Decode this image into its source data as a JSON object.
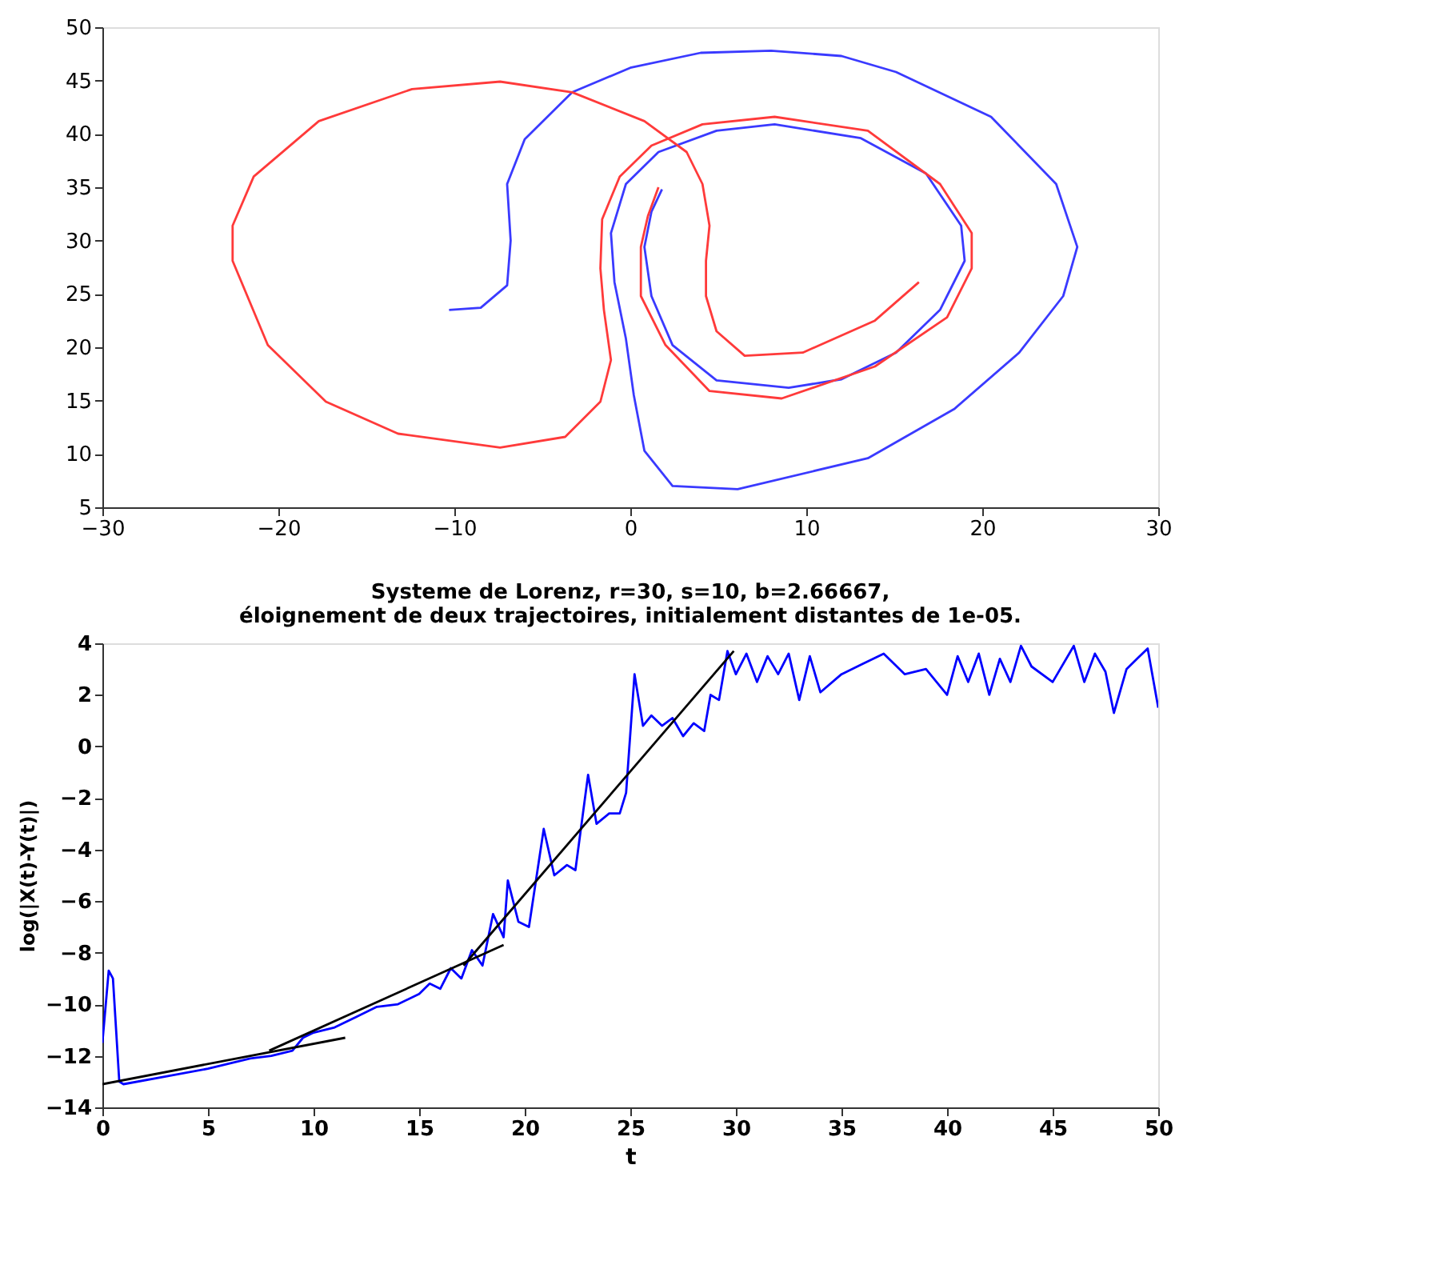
{
  "chart_data": [
    {
      "type": "line",
      "xlim": [
        -30,
        30
      ],
      "ylim": [
        5,
        50
      ],
      "xticks": [
        -30,
        -20,
        -10,
        0,
        10,
        20,
        30
      ],
      "yticks": [
        5,
        10,
        15,
        20,
        25,
        30,
        35,
        40,
        45,
        50
      ],
      "grid": false,
      "marker": "none",
      "line_style": "solid",
      "series": [
        {
          "color": "#3a3aff",
          "x": [
            -10.3,
            -8.5,
            -7.0,
            -6.8,
            -7.0,
            -6.0,
            -3.3,
            0.0,
            4.0,
            8.0,
            12.0,
            15.1,
            20.5,
            24.2,
            25.4,
            24.6,
            22.1,
            18.4,
            13.5,
            6.1,
            2.4,
            0.8,
            0.2,
            -0.25,
            -0.9,
            -1.1,
            -0.25,
            1.6,
            4.9,
            8.2,
            13.1,
            16.8,
            18.8,
            19.0,
            17.6,
            15.1,
            12.0,
            9.0,
            4.9,
            2.4,
            1.2,
            0.8,
            1.2,
            1.8
          ],
          "values": [
            23.5,
            23.7,
            25.8,
            30.0,
            35.3,
            39.5,
            43.9,
            46.2,
            47.6,
            47.8,
            47.3,
            45.8,
            41.6,
            35.3,
            29.4,
            24.8,
            19.5,
            14.2,
            9.6,
            6.7,
            7.0,
            10.3,
            15.5,
            20.8,
            26.1,
            30.7,
            35.3,
            38.3,
            40.3,
            40.9,
            39.6,
            36.3,
            31.4,
            28.1,
            23.5,
            19.5,
            17.0,
            16.2,
            16.9,
            20.2,
            24.8,
            29.4,
            32.7,
            34.8
          ]
        },
        {
          "color": "#ff3a3a",
          "x": [
            16.4,
            13.9,
            9.8,
            6.5,
            4.9,
            4.3,
            4.3,
            4.5,
            4.1,
            3.2,
            0.8,
            -3.3,
            -7.4,
            -12.4,
            -17.7,
            -21.4,
            -22.6,
            -22.6,
            -20.6,
            -17.3,
            -13.2,
            -7.4,
            -3.7,
            -1.7,
            -1.1,
            -1.5,
            -1.7,
            -1.6,
            -0.6,
            1.2,
            4.1,
            8.2,
            13.5,
            17.6,
            19.4,
            19.4,
            18.0,
            13.9,
            8.6,
            4.5,
            2.0,
            0.6,
            0.6,
            1.0,
            1.6
          ],
          "values": [
            26.1,
            22.5,
            19.5,
            19.2,
            21.5,
            24.8,
            28.1,
            31.4,
            35.3,
            38.3,
            41.2,
            43.9,
            44.9,
            44.2,
            41.2,
            36.0,
            31.4,
            28.1,
            20.2,
            14.9,
            11.9,
            10.6,
            11.6,
            14.9,
            18.8,
            23.5,
            27.4,
            32.0,
            36.0,
            38.9,
            40.9,
            41.6,
            40.3,
            35.3,
            30.7,
            27.4,
            22.8,
            18.2,
            15.2,
            15.9,
            20.2,
            24.8,
            29.4,
            32.3,
            35.0
          ]
        }
      ]
    },
    {
      "type": "line",
      "title": "Systeme de Lorenz, r=30, s=10, b=2.66667,\néloignement de deux trajectoires, initialement distantes de 1e-05.",
      "xlabel": "t",
      "ylabel": "log(|X(t)-Y(t)|)",
      "xlim": [
        0,
        50
      ],
      "ylim": [
        -14,
        4
      ],
      "xticks": [
        0,
        5,
        10,
        15,
        20,
        25,
        30,
        35,
        40,
        45,
        50
      ],
      "yticks": [
        -14,
        -12,
        -10,
        -8,
        -6,
        -4,
        -2,
        0,
        2,
        4
      ],
      "grid": false,
      "marker": "none",
      "line_style": "solid",
      "series": [
        {
          "color": "#0000ff",
          "x": [
            0,
            0.3,
            0.5,
            0.8,
            1,
            3,
            5,
            7,
            8,
            9,
            9.5,
            10,
            11,
            12,
            13,
            14,
            15,
            15.5,
            16,
            16.5,
            17,
            17.5,
            18,
            18.5,
            19,
            19.2,
            19.7,
            20.2,
            20.9,
            21.4,
            22,
            22.4,
            23,
            23.4,
            24,
            24.5,
            24.8,
            25.2,
            25.6,
            26,
            26.5,
            27,
            27.5,
            28,
            28.5,
            28.8,
            29.2,
            29.6,
            30,
            30.5,
            31,
            31.5,
            32,
            32.5,
            33,
            33.5,
            34,
            35,
            36,
            37,
            38,
            39,
            40,
            40.5,
            41,
            41.5,
            42,
            42.5,
            43,
            43.5,
            44,
            45,
            46,
            46.5,
            47,
            47.5,
            47.9,
            48.5,
            49,
            49.5,
            50
          ],
          "values": [
            -11.5,
            -8.7,
            -9,
            -13,
            -13.1,
            -12.8,
            -12.5,
            -12.1,
            -12,
            -11.8,
            -11.3,
            -11.1,
            -10.9,
            -10.5,
            -10.1,
            -10,
            -9.6,
            -9.2,
            -9.4,
            -8.6,
            -9,
            -7.9,
            -8.5,
            -6.5,
            -7.4,
            -5.2,
            -6.8,
            -7,
            -3.2,
            -5,
            -4.6,
            -4.8,
            -1.1,
            -3,
            -2.6,
            -2.6,
            -1.8,
            2.8,
            0.8,
            1.2,
            0.8,
            1.1,
            0.4,
            0.9,
            0.6,
            2,
            1.8,
            3.7,
            2.8,
            3.6,
            2.5,
            3.5,
            2.8,
            3.6,
            1.8,
            3.5,
            2.1,
            2.8,
            3.2,
            3.6,
            2.8,
            3,
            2,
            3.5,
            2.5,
            3.6,
            2,
            3.4,
            2.5,
            3.9,
            3.1,
            2.5,
            3.9,
            2.5,
            3.6,
            2.9,
            1.3,
            3,
            3.4,
            3.8,
            1.5
          ]
        },
        {
          "color": "#000000",
          "x": [
            0,
            11.5
          ],
          "values": [
            -13.1,
            -11.3
          ]
        },
        {
          "color": "#000000",
          "x": [
            7.9,
            19
          ],
          "values": [
            -11.8,
            -7.7
          ]
        },
        {
          "color": "#000000",
          "x": [
            17.1,
            29.9
          ],
          "values": [
            -8.5,
            3.7
          ]
        }
      ]
    }
  ]
}
